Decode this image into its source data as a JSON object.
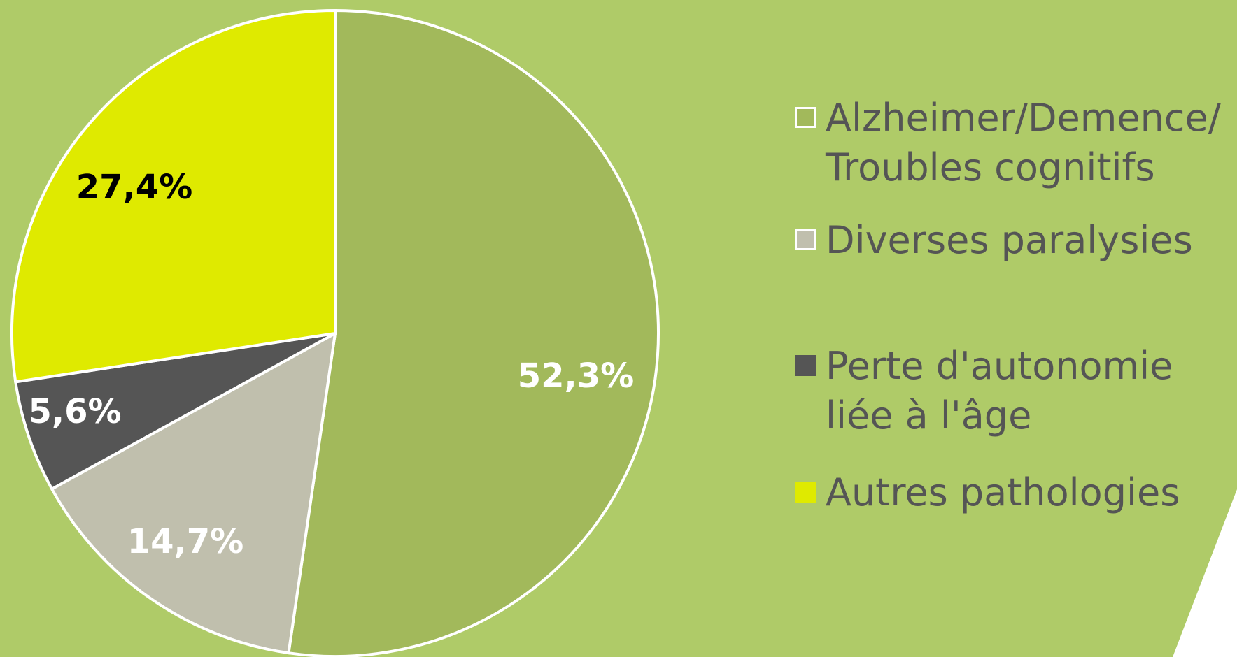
{
  "chart_data": {
    "type": "pie",
    "categories": [
      "Alzheimer/Demence/\nTroubles cognitifs",
      "Diverses paralysies",
      "Perte d'autonomie\nliée à l'âge",
      "Autres pathologies"
    ],
    "values": [
      52.3,
      14.7,
      5.6,
      27.4
    ],
    "value_labels": [
      "52,3%",
      "14,7%",
      "5,6%",
      "27,4%"
    ],
    "colors": [
      "#a2b95b",
      "#c0bfad",
      "#555555",
      "#dfea00"
    ]
  }
}
